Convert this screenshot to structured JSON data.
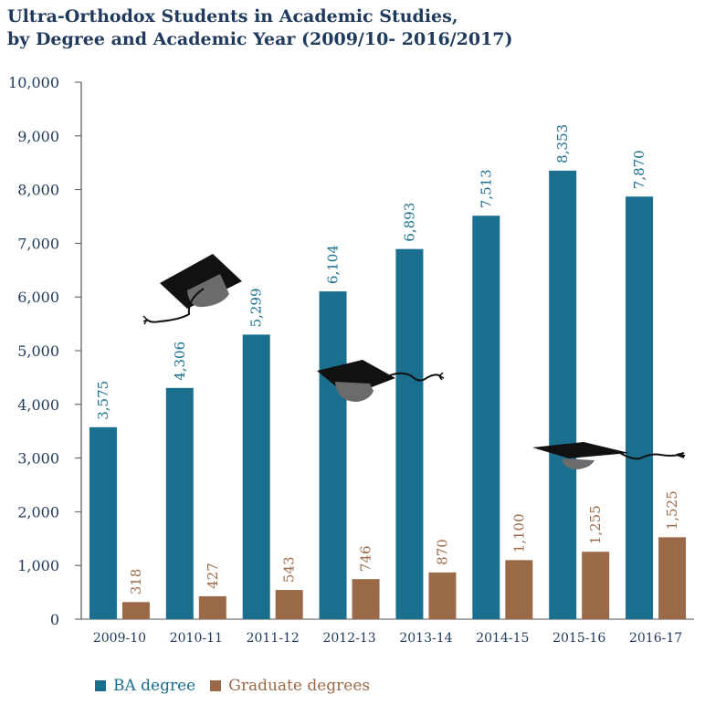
{
  "title_line1": "Ultra-Orthodox Students in Academic Studies,",
  "title_line2": "by Degree and Academic Year (2009/10- 2016/2017)",
  "colors": {
    "ba": "#1a6e8e",
    "grad": "#9a6a48",
    "text": "#1f3a5c",
    "axis": "#555555"
  },
  "chart_data": {
    "type": "bar",
    "categories": [
      "2009-10",
      "2010-11",
      "2011-12",
      "2012-13",
      "2013-14",
      "2014-15",
      "2015-16",
      "2016-17"
    ],
    "series": [
      {
        "name": "BA degree",
        "values": [
          3575,
          4306,
          5299,
          6104,
          6893,
          7513,
          8353,
          7870
        ],
        "labels": [
          "3,575",
          "4,306",
          "5,299",
          "6,104",
          "6,893",
          "7,513",
          "8,353",
          "7,870"
        ]
      },
      {
        "name": "Graduate degrees",
        "values": [
          318,
          427,
          543,
          746,
          870,
          1100,
          1255,
          1525
        ],
        "labels": [
          "318",
          "427",
          "543",
          "746",
          "870",
          "1,100",
          "1,255",
          "1,525"
        ]
      }
    ],
    "ylim": [
      0,
      10000
    ],
    "yticks": [
      0,
      1000,
      2000,
      3000,
      4000,
      5000,
      6000,
      7000,
      8000,
      9000,
      10000
    ],
    "ytick_labels": [
      "0",
      "1,000",
      "2,000",
      "3,000",
      "4,000",
      "5,000",
      "6,000",
      "7,000",
      "8,000",
      "9,000",
      "10,000"
    ],
    "legend_position": "bottom-left",
    "grid": false
  },
  "decorations": [
    "graduation-cap-icon",
    "graduation-cap-icon",
    "graduation-cap-icon"
  ]
}
